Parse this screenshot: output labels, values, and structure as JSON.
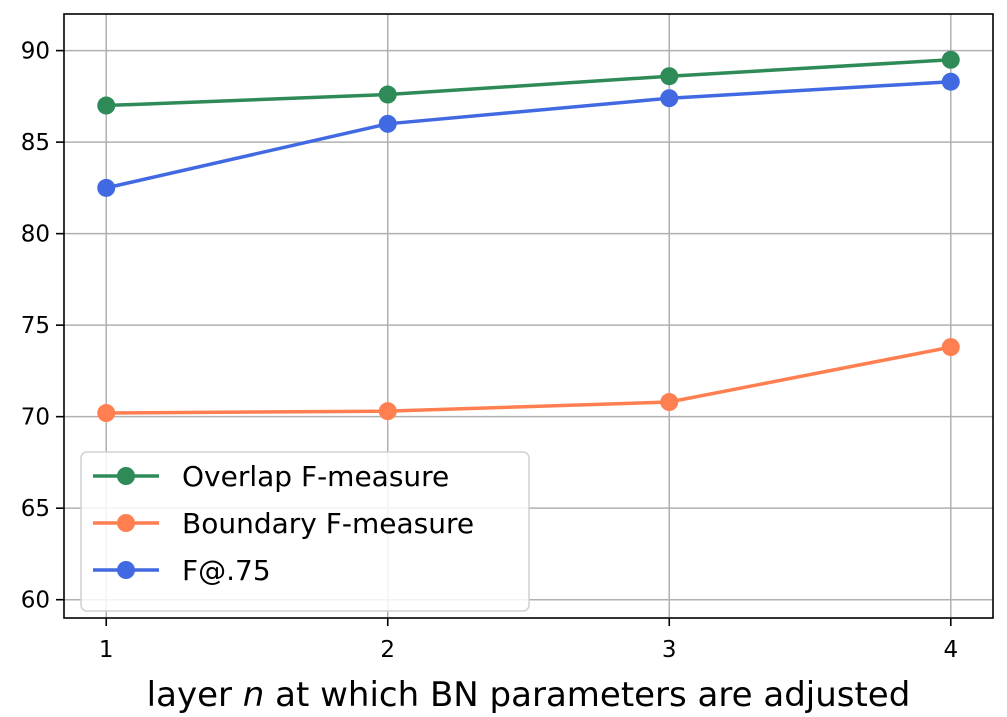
{
  "chart_data": {
    "type": "line",
    "xlabel_prefix": "layer ",
    "xlabel_var": "n",
    "xlabel_suffix": " at which BN parameters are adjusted",
    "ylabel": "",
    "x": [
      1,
      2,
      3,
      4
    ],
    "x_ticks": [
      "1",
      "2",
      "3",
      "4"
    ],
    "y_ticks": [
      "60",
      "65",
      "70",
      "75",
      "80",
      "85",
      "90"
    ],
    "ylim": [
      59,
      92
    ],
    "xlim": [
      0.85,
      4.15
    ],
    "grid": true,
    "legend_position": "lower-left",
    "series": [
      {
        "name": "Overlap F-measure",
        "color": "#2e8b57",
        "values": [
          87.0,
          87.6,
          88.6,
          89.5
        ]
      },
      {
        "name": "Boundary F-measure",
        "color": "#ff7f50",
        "values": [
          70.2,
          70.3,
          70.8,
          73.8
        ]
      },
      {
        "name": "F@.75",
        "color": "#4169e1",
        "values": [
          82.5,
          86.0,
          87.4,
          88.3
        ]
      }
    ]
  }
}
